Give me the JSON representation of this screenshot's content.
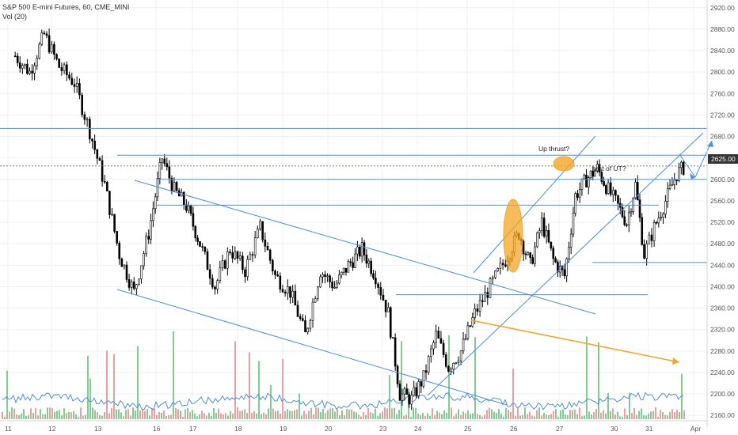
{
  "legend": {
    "symbol": "S&P 500 E-mini Futures, 60, CME_MINI",
    "indicator": "Vol (20)"
  },
  "price_axis_labels": [
    "2920.00",
    "2880.00",
    "2840.00",
    "2800.00",
    "2760.00",
    "2720.00",
    "2680.00",
    "2640.00",
    "2600.00",
    "2560.00",
    "2520.00",
    "2480.00",
    "2440.00",
    "2400.00",
    "2360.00",
    "2320.00",
    "2280.00",
    "2240.00",
    "2200.00",
    "2160.00"
  ],
  "current_price_tag": "2625.00",
  "annotations": {
    "up_thrust": "Up thrust?",
    "test_of_ut": "test of UT?"
  },
  "colors": {
    "trendline": "#4a90e2",
    "volume_down": "#e8a0a0",
    "volume_up": "#7fcf8f",
    "volume_ma": "#4a90e2",
    "highlight": "#f5a623",
    "candle": "#000000",
    "grid": "#eef1f5",
    "price_tag": "#333333"
  },
  "chart_data": {
    "type": "candlestick",
    "title": "S&P 500 E-mini Futures, 60, CME_MINI",
    "indicator": "Vol (20)",
    "x_ticks": [
      "11",
      "12",
      "13",
      "16",
      "17",
      "18",
      "19",
      "20",
      "23",
      "24",
      "25",
      "26",
      "27",
      "30",
      "31",
      "Apr"
    ],
    "ylim": [
      2150,
      2930
    ],
    "grid": true,
    "current_price": 2625.0,
    "close_path": [
      [
        "11",
        2830
      ],
      [
        "11",
        2800
      ],
      [
        "11",
        2870
      ],
      [
        "12",
        2810
      ],
      [
        "12",
        2780
      ],
      [
        "12",
        2690
      ],
      [
        "13",
        2590
      ],
      [
        "13",
        2460
      ],
      [
        "13",
        2390
      ],
      [
        "13",
        2500
      ],
      [
        "16",
        2640
      ],
      [
        "16",
        2580
      ],
      [
        "16",
        2550
      ],
      [
        "17",
        2480
      ],
      [
        "17",
        2400
      ],
      [
        "17",
        2470
      ],
      [
        "18",
        2430
      ],
      [
        "18",
        2510
      ],
      [
        "18",
        2420
      ],
      [
        "19",
        2390
      ],
      [
        "19",
        2310
      ],
      [
        "19",
        2430
      ],
      [
        "20",
        2400
      ],
      [
        "20",
        2440
      ],
      [
        "20",
        2470
      ],
      [
        "20",
        2420
      ],
      [
        "23",
        2350
      ],
      [
        "23",
        2200
      ],
      [
        "23",
        2190
      ],
      [
        "24",
        2230
      ],
      [
        "24",
        2310
      ],
      [
        "24",
        2250
      ],
      [
        "24",
        2280
      ],
      [
        "25",
        2350
      ],
      [
        "25",
        2400
      ],
      [
        "25",
        2450
      ],
      [
        "26",
        2500
      ],
      [
        "26",
        2440
      ],
      [
        "26",
        2520
      ],
      [
        "26",
        2450
      ],
      [
        "27",
        2420
      ],
      [
        "27",
        2570
      ],
      [
        "27",
        2600
      ],
      [
        "27",
        2620
      ],
      [
        "27",
        2580
      ],
      [
        "30",
        2550
      ],
      [
        "30",
        2520
      ],
      [
        "30",
        2590
      ],
      [
        "30",
        2460
      ],
      [
        "31",
        2510
      ],
      [
        "31",
        2560
      ],
      [
        "31",
        2610
      ],
      [
        "31",
        2630
      ],
      [
        "Apr",
        2620
      ]
    ],
    "levels": [
      2695,
      2645,
      2600,
      2552,
      2445,
      2385
    ],
    "trend_channels": [
      {
        "name": "falling channel upper",
        "from": [
          "16",
          2580
        ],
        "to": [
          "26",
          2415
        ]
      },
      {
        "name": "falling channel lower",
        "from": [
          "13",
          2380
        ],
        "to": [
          "25",
          2160
        ]
      },
      {
        "name": "rising channel upper",
        "from": [
          "25",
          2440
        ],
        "to": [
          "31",
          2690
        ]
      },
      {
        "name": "rising channel lower",
        "from": [
          "25",
          2320
        ],
        "to": [
          "31",
          2660
        ]
      }
    ],
    "volume_trendline": {
      "from": [
        "25",
        2320
      ],
      "to": [
        "31",
        2240
      ]
    }
  }
}
